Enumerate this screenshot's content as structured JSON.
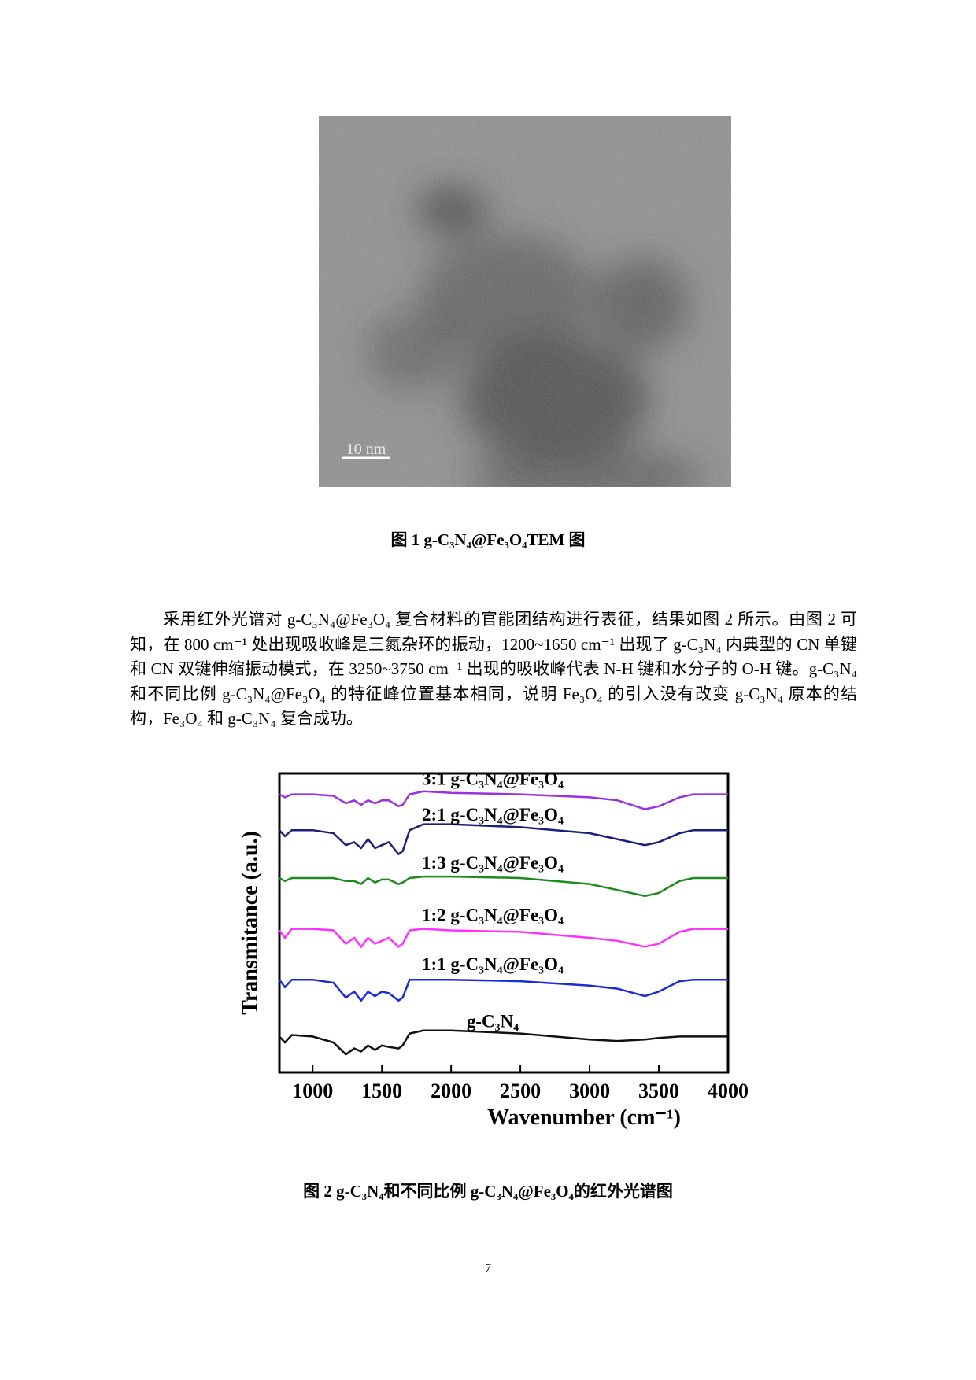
{
  "figure1": {
    "scale_bar": "10 nm",
    "caption": "图 1 g-C₃N₄@Fe₃O₄TEM 图"
  },
  "paragraph": "采用红外光谱对 g-C₃N₄@Fe₃O₄ 复合材料的官能团结构进行表征，结果如图 2 所示。由图 2 可知，在 800 cm⁻¹ 处出现吸收峰是三氮杂环的振动，1200~1650 cm⁻¹ 出现了 g-C₃N₄ 内典型的 CN 单键和 CN 双键伸缩振动模式，在 3250~3750 cm⁻¹ 出现的吸收峰代表 N-H 键和水分子的 O-H 键。g-C₃N₄ 和不同比例 g-C₃N₄@Fe₃O₄ 的特征峰位置基本相同，说明 Fe₃O₄ 的引入没有改变 g-C₃N₄ 原本的结构，Fe₃O₄ 和 g-C₃N₄ 复合成功。",
  "chart_data": {
    "type": "line",
    "x_label": "Wavenumber (cm⁻¹)",
    "y_label": "Transmitance (a.u.)",
    "x": [
      760,
      800,
      850,
      1000,
      1150,
      1240,
      1300,
      1350,
      1400,
      1450,
      1500,
      1550,
      1620,
      1650,
      1700,
      1800,
      2000,
      2500,
      3000,
      3200,
      3400,
      3500,
      3650,
      3750,
      4000
    ],
    "xlim": [
      760,
      4000
    ],
    "xticks": [
      1000,
      1500,
      2000,
      2500,
      3000,
      3500,
      4000
    ],
    "ylim": [
      0,
      10
    ],
    "series": [
      {
        "name": "3:1 g-C₃N₄@Fe₃O₄",
        "color": "#9b30e0",
        "values": [
          9.3,
          9.2,
          9.3,
          9.3,
          9.25,
          9.0,
          9.1,
          8.95,
          9.1,
          9.0,
          9.1,
          9.1,
          8.9,
          8.95,
          9.3,
          9.4,
          9.35,
          9.3,
          9.2,
          9.1,
          8.8,
          8.9,
          9.2,
          9.3,
          9.3
        ]
      },
      {
        "name": "2:1 g-C₃N₄@Fe₃O₄",
        "color": "#1a1f7a",
        "values": [
          8.1,
          7.9,
          8.1,
          8.1,
          8.0,
          7.6,
          7.7,
          7.5,
          7.8,
          7.5,
          7.6,
          7.7,
          7.3,
          7.4,
          8.1,
          8.3,
          8.3,
          8.2,
          8.0,
          7.8,
          7.6,
          7.7,
          8.0,
          8.1,
          8.1
        ]
      },
      {
        "name": "1:3 g-C₃N₄@Fe₃O₄",
        "color": "#1e8a1e",
        "values": [
          6.5,
          6.4,
          6.5,
          6.5,
          6.5,
          6.4,
          6.4,
          6.3,
          6.5,
          6.35,
          6.45,
          6.45,
          6.3,
          6.35,
          6.5,
          6.55,
          6.55,
          6.5,
          6.3,
          6.1,
          5.9,
          6.0,
          6.4,
          6.5,
          6.5
        ]
      },
      {
        "name": "1:2 g-C₃N₄@Fe₃O₄",
        "color": "#ff30ff",
        "values": [
          4.75,
          4.5,
          4.8,
          4.8,
          4.75,
          4.3,
          4.5,
          4.2,
          4.5,
          4.3,
          4.4,
          4.5,
          4.2,
          4.3,
          4.75,
          4.8,
          4.75,
          4.7,
          4.5,
          4.4,
          4.2,
          4.3,
          4.7,
          4.8,
          4.8
        ]
      },
      {
        "name": "1:1 g-C₃N₄@Fe₃O₄",
        "color": "#1a2bd8",
        "values": [
          3.1,
          2.85,
          3.1,
          3.1,
          3.0,
          2.5,
          2.7,
          2.4,
          2.7,
          2.55,
          2.7,
          2.65,
          2.4,
          2.5,
          3.1,
          3.1,
          3.1,
          3.05,
          2.9,
          2.8,
          2.55,
          2.7,
          3.05,
          3.1,
          3.1
        ]
      },
      {
        "name": "g-C₃N₄",
        "color": "#111111",
        "values": [
          1.2,
          1.0,
          1.25,
          1.2,
          1.0,
          0.6,
          0.8,
          0.7,
          0.9,
          0.75,
          0.9,
          0.85,
          0.8,
          0.9,
          1.3,
          1.4,
          1.4,
          1.3,
          1.1,
          1.05,
          1.1,
          1.15,
          1.2,
          1.2,
          1.2
        ]
      }
    ]
  },
  "figure2": {
    "caption": "图 2 g-C₃N₄和不同比例 g-C₃N₄@Fe₃O₄的红外光谱图"
  },
  "page_number": "7"
}
